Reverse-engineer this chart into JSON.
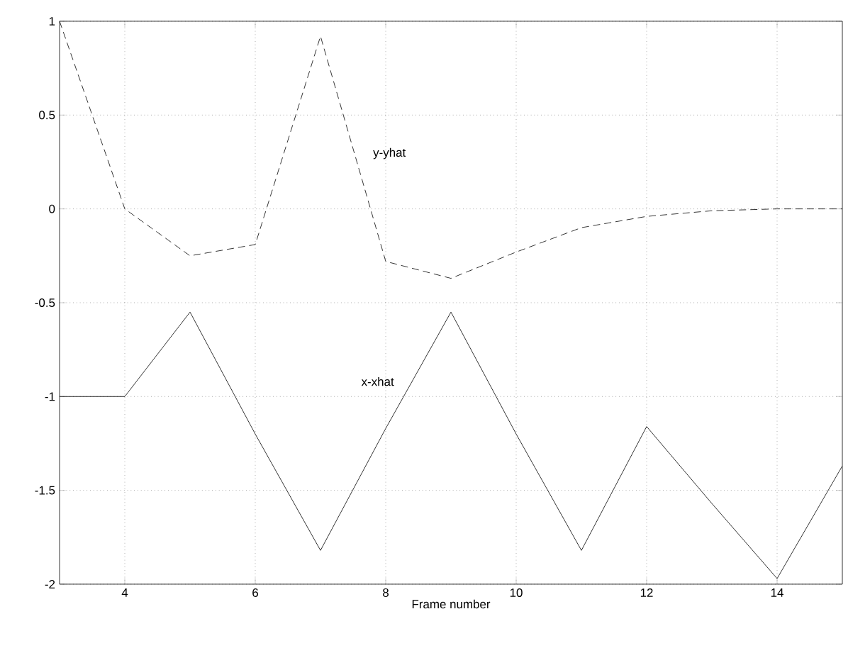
{
  "chart_data": {
    "type": "line",
    "xlabel": "Frame number",
    "x": [
      3,
      4,
      5,
      6,
      7,
      8,
      9,
      10,
      11,
      12,
      13,
      14,
      15
    ],
    "series": [
      {
        "name": "y-yhat",
        "color": "#000000",
        "line_style": "dashed",
        "values": [
          1,
          0,
          -0.25,
          -0.19,
          0.92,
          -0.28,
          -0.37,
          -0.23,
          -0.1,
          -0.04,
          -0.01,
          0,
          0
        ]
      },
      {
        "name": "x-xhat",
        "color": "#000000",
        "line_style": "solid",
        "values": [
          -1,
          -1,
          -0.55,
          -1.2,
          -1.82,
          -1.17,
          -0.55,
          -1.2,
          -1.82,
          -1.16,
          -1.57,
          -1.97,
          -1.37
        ]
      }
    ],
    "xlim": [
      3,
      15
    ],
    "ylim": [
      -2,
      1
    ],
    "xticks": [
      4,
      6,
      8,
      10,
      12,
      14
    ],
    "yticks": [
      -2,
      -1.5,
      -1,
      -0.5,
      0,
      0.5,
      1
    ],
    "grid": true,
    "marker": "none"
  }
}
